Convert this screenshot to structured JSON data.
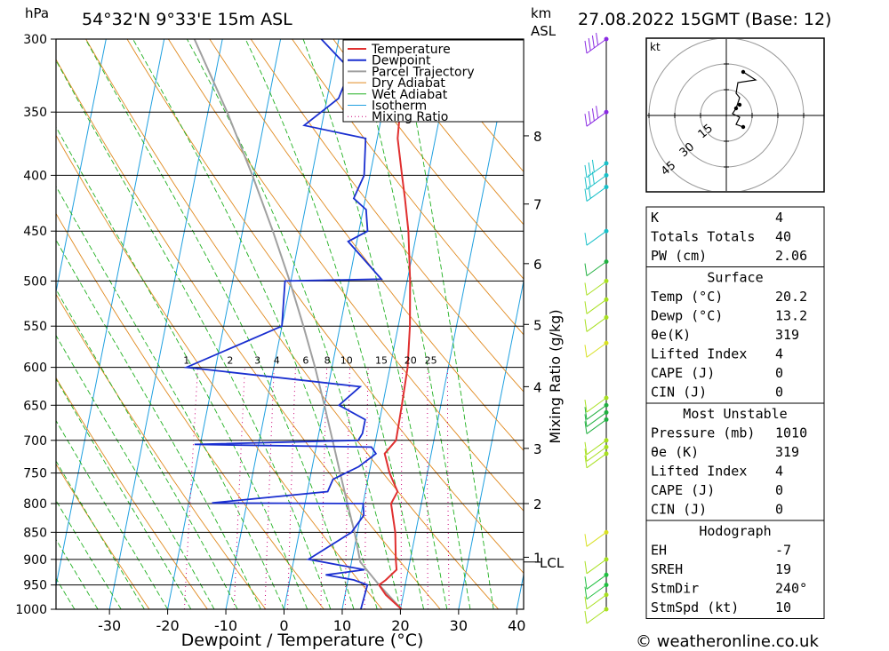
{
  "header": {
    "pressure_unit": "hPa",
    "location": "54°32'N  9°33'E  15m  ASL",
    "km_unit": "km",
    "asl_unit": "ASL",
    "datetime": "27.08.2022  15GMT  (Base: 12)"
  },
  "footer": {
    "credit": "© weatheronline.co.uk"
  },
  "colors": {
    "temperature": "#e03030",
    "dewpoint": "#1a2fd0",
    "parcel": "#a0a0a0",
    "dry_adiabat": "#e08a20",
    "wet_adiabat": "#20b020",
    "isotherm": "#1fa0e0",
    "mixing_ratio": "#cc0077",
    "wind": "#a8e020"
  },
  "hodograph": {
    "unit": "kt",
    "ring_labels": [
      "15",
      "30",
      "45"
    ]
  },
  "indices": {
    "rows": [
      {
        "label": "K",
        "value": "4"
      },
      {
        "label": "Totals Totals",
        "value": "40"
      },
      {
        "label": "PW (cm)",
        "value": "2.06"
      }
    ]
  },
  "surface": {
    "title": "Surface",
    "rows": [
      {
        "label": "Temp (°C)",
        "value": "20.2"
      },
      {
        "label": "Dewp (°C)",
        "value": "13.2"
      },
      {
        "label": "θe(K)",
        "value": "319"
      },
      {
        "label": "Lifted Index",
        "value": "4"
      },
      {
        "label": "CAPE (J)",
        "value": "0"
      },
      {
        "label": "CIN (J)",
        "value": "0"
      }
    ]
  },
  "most_unstable": {
    "title": "Most Unstable",
    "rows": [
      {
        "label": "Pressure (mb)",
        "value": "1010"
      },
      {
        "label": "θe (K)",
        "value": "319"
      },
      {
        "label": "Lifted Index",
        "value": "4"
      },
      {
        "label": "CAPE (J)",
        "value": "0"
      },
      {
        "label": "CIN (J)",
        "value": "0"
      }
    ]
  },
  "hodograph_table": {
    "title": "Hodograph",
    "rows": [
      {
        "label": "EH",
        "value": "-7"
      },
      {
        "label": "SREH",
        "value": "19"
      },
      {
        "label": "StmDir",
        "value": "240°"
      },
      {
        "label": "StmSpd (kt)",
        "value": "10"
      }
    ]
  },
  "chart_data": {
    "type": "line",
    "xlabel": "Dewpoint / Temperature (°C)",
    "ylabel": "Mixing Ratio (g/kg)",
    "x_ticks": [
      "-30",
      "-20",
      "-10",
      "0",
      "10",
      "20",
      "30",
      "40"
    ],
    "pressure_ticks": [
      "300",
      "350",
      "400",
      "450",
      "500",
      "550",
      "600",
      "650",
      "700",
      "750",
      "800",
      "850",
      "900",
      "950",
      "1000"
    ],
    "km_ticks": [
      "8",
      "7",
      "6",
      "5",
      "4",
      "3",
      "2",
      "1"
    ],
    "km_ticks_pressure": [
      368,
      425,
      482,
      548,
      625,
      712,
      800,
      896
    ],
    "lcl_label": "LCL",
    "lcl_pressure": 905,
    "mixing_ratio_labels": [
      "1",
      "2",
      "3",
      "4",
      "6",
      "8",
      "10",
      "15",
      "20",
      "25"
    ],
    "mixing_ratio_label_t": [
      -25,
      -17.5,
      -12.8,
      -9.5,
      -4.5,
      -0.8,
      2.5,
      8.5,
      13.5,
      17.0
    ],
    "legend": [
      "Temperature",
      "Dewpoint",
      "Parcel Trajectory",
      "Dry Adiabat",
      "Wet Adiabat",
      "Isotherm",
      "Mixing Ratio"
    ],
    "series": [
      {
        "name": "Temperature",
        "points": [
          [
            1000,
            20.2
          ],
          [
            970,
            17.0
          ],
          [
            950,
            15.5
          ],
          [
            940,
            16.5
          ],
          [
            920,
            18.0
          ],
          [
            900,
            17.5
          ],
          [
            850,
            16.5
          ],
          [
            800,
            14.8
          ],
          [
            780,
            15.5
          ],
          [
            750,
            13.5
          ],
          [
            720,
            12.0
          ],
          [
            700,
            13.5
          ],
          [
            650,
            13.3
          ],
          [
            600,
            13.0
          ],
          [
            550,
            12.0
          ],
          [
            500,
            10.5
          ],
          [
            450,
            8.5
          ],
          [
            420,
            6.8
          ],
          [
            400,
            5.5
          ],
          [
            370,
            3.5
          ],
          [
            350,
            3.0
          ],
          [
            320,
            0.5
          ],
          [
            300,
            -1.0
          ]
        ]
      },
      {
        "name": "Dewpoint",
        "points": [
          [
            1000,
            13.2
          ],
          [
            950,
            13.5
          ],
          [
            940,
            11.0
          ],
          [
            930,
            6.0
          ],
          [
            920,
            12.5
          ],
          [
            900,
            2.5
          ],
          [
            850,
            9.0
          ],
          [
            820,
            10.5
          ],
          [
            800,
            10.0
          ],
          [
            799,
            -16.0
          ],
          [
            780,
            3.5
          ],
          [
            760,
            4.0
          ],
          [
            740,
            8.0
          ],
          [
            720,
            10.5
          ],
          [
            710,
            9.5
          ],
          [
            706,
            -21.0
          ],
          [
            700,
            7.0
          ],
          [
            690,
            7.5
          ],
          [
            670,
            7.5
          ],
          [
            650,
            2.5
          ],
          [
            625,
            5.5
          ],
          [
            600,
            -25.0
          ],
          [
            550,
            -10.0
          ],
          [
            500,
            -11.0
          ],
          [
            498,
            5.5
          ],
          [
            460,
            -1.5
          ],
          [
            450,
            1.5
          ],
          [
            430,
            0.5
          ],
          [
            420,
            -2.0
          ],
          [
            400,
            -1.0
          ],
          [
            370,
            -2.0
          ],
          [
            360,
            -13.0
          ],
          [
            340,
            -8.0
          ],
          [
            320,
            -7.0
          ],
          [
            300,
            -13.0
          ]
        ]
      },
      {
        "name": "Parcel Trajectory",
        "points": [
          [
            1000,
            20.2
          ],
          [
            950,
            15.5
          ],
          [
            905,
            11.5
          ],
          [
            850,
            9.5
          ],
          [
            800,
            7.3
          ],
          [
            750,
            5.0
          ],
          [
            700,
            2.6
          ],
          [
            650,
            0.0
          ],
          [
            600,
            -2.9
          ],
          [
            550,
            -6.3
          ],
          [
            500,
            -10.2
          ],
          [
            450,
            -14.8
          ],
          [
            400,
            -20.2
          ],
          [
            350,
            -26.7
          ],
          [
            300,
            -34.8
          ]
        ]
      }
    ],
    "wind_barbs": [
      {
        "pressure": 300,
        "speed": 40,
        "color": "#8a2be2"
      },
      {
        "pressure": 350,
        "speed": 35,
        "color": "#8a2be2"
      },
      {
        "pressure": 390,
        "speed": 25,
        "color": "#18c0c8"
      },
      {
        "pressure": 400,
        "speed": 25,
        "color": "#18c0c8"
      },
      {
        "pressure": 410,
        "speed": 20,
        "color": "#18c0c8"
      },
      {
        "pressure": 450,
        "speed": 10,
        "color": "#18c0c8"
      },
      {
        "pressure": 480,
        "speed": 10,
        "color": "#20b040"
      },
      {
        "pressure": 500,
        "speed": 10,
        "color": "#a8e020"
      },
      {
        "pressure": 520,
        "speed": 10,
        "color": "#a8e020"
      },
      {
        "pressure": 540,
        "speed": 10,
        "color": "#a8e020"
      },
      {
        "pressure": 570,
        "speed": 10,
        "color": "#d8e020"
      },
      {
        "pressure": 640,
        "speed": 10,
        "color": "#a8e020"
      },
      {
        "pressure": 650,
        "speed": 10,
        "color": "#20b040"
      },
      {
        "pressure": 660,
        "speed": 10,
        "color": "#20b040"
      },
      {
        "pressure": 670,
        "speed": 10,
        "color": "#20b040"
      },
      {
        "pressure": 700,
        "speed": 10,
        "color": "#a8e020"
      },
      {
        "pressure": 710,
        "speed": 10,
        "color": "#a8e020"
      },
      {
        "pressure": 720,
        "speed": 10,
        "color": "#a8e020"
      },
      {
        "pressure": 850,
        "speed": 10,
        "color": "#d8e020"
      },
      {
        "pressure": 900,
        "speed": 10,
        "color": "#a8e020"
      },
      {
        "pressure": 930,
        "speed": 10,
        "color": "#20c040"
      },
      {
        "pressure": 950,
        "speed": 10,
        "color": "#20c040"
      },
      {
        "pressure": 970,
        "speed": 10,
        "color": "#a8e020"
      },
      {
        "pressure": 1000,
        "speed": 10,
        "color": "#a8e020"
      }
    ]
  }
}
